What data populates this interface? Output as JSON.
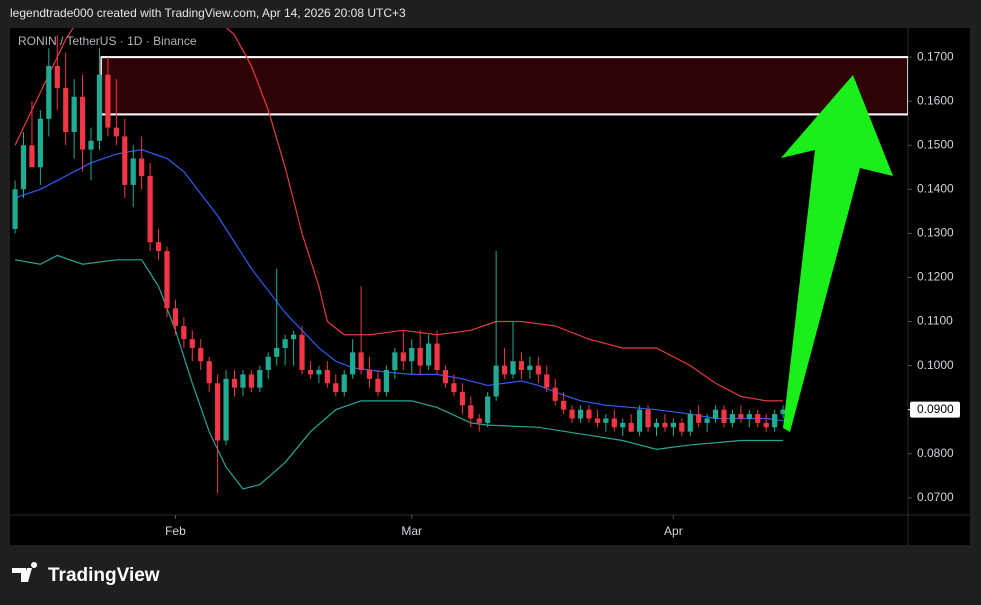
{
  "header": "legendtrade000 created with TradingView.com, Apr 14, 2026 20:08 UTC+3",
  "footer": "TradingView",
  "chart_data": {
    "type": "candlestick",
    "title": "RONIN / TetherUS · 1D · Binance",
    "up_color": "#22ab94",
    "down_color": "#f23645",
    "open": [
      0.131,
      0.14,
      0.15,
      0.145,
      0.156,
      0.168,
      0.163,
      0.153,
      0.161,
      0.149,
      0.151,
      0.166,
      0.154,
      0.152,
      0.141,
      0.147,
      0.143,
      0.128,
      0.126,
      0.113,
      0.109,
      0.106,
      0.104,
      0.101,
      0.096,
      0.083,
      0.097,
      0.095,
      0.098,
      0.095,
      0.099,
      0.102,
      0.104,
      0.106,
      0.107,
      0.099,
      0.098,
      0.099,
      0.096,
      0.094,
      0.098,
      0.103,
      0.099,
      0.097,
      0.094,
      0.099,
      0.103,
      0.101,
      0.104,
      0.1,
      0.105,
      0.099,
      0.096,
      0.094,
      0.091,
      0.088,
      0.087,
      0.093,
      0.1,
      0.098,
      0.101,
      0.099,
      0.1,
      0.098,
      0.095,
      0.092,
      0.09,
      0.088,
      0.09,
      0.088,
      0.087,
      0.088,
      0.086,
      0.087,
      0.085,
      0.09,
      0.086,
      0.087,
      0.086,
      0.087,
      0.085,
      0.089,
      0.087,
      0.088,
      0.09,
      0.087,
      0.089,
      0.088,
      0.089,
      0.087,
      0.086,
      0.089
    ],
    "high": [
      0.142,
      0.153,
      0.16,
      0.158,
      0.172,
      0.175,
      0.171,
      0.165,
      0.166,
      0.154,
      0.172,
      0.17,
      0.165,
      0.156,
      0.15,
      0.152,
      0.146,
      0.131,
      0.127,
      0.115,
      0.111,
      0.108,
      0.106,
      0.102,
      0.098,
      0.099,
      0.099,
      0.099,
      0.099,
      0.1,
      0.103,
      0.122,
      0.107,
      0.108,
      0.109,
      0.101,
      0.1,
      0.101,
      0.098,
      0.099,
      0.106,
      0.118,
      0.102,
      0.099,
      0.1,
      0.104,
      0.108,
      0.106,
      0.108,
      0.107,
      0.108,
      0.1,
      0.098,
      0.096,
      0.093,
      0.089,
      0.094,
      0.126,
      0.104,
      0.11,
      0.103,
      0.102,
      0.102,
      0.1,
      0.097,
      0.094,
      0.091,
      0.091,
      0.091,
      0.09,
      0.089,
      0.09,
      0.088,
      0.089,
      0.091,
      0.091,
      0.088,
      0.089,
      0.088,
      0.088,
      0.09,
      0.091,
      0.089,
      0.091,
      0.091,
      0.09,
      0.091,
      0.09,
      0.09,
      0.089,
      0.09,
      0.091
    ],
    "low": [
      0.13,
      0.138,
      0.146,
      0.141,
      0.152,
      0.158,
      0.15,
      0.147,
      0.144,
      0.142,
      0.149,
      0.152,
      0.15,
      0.138,
      0.136,
      0.14,
      0.126,
      0.124,
      0.111,
      0.107,
      0.104,
      0.101,
      0.099,
      0.094,
      0.071,
      0.082,
      0.093,
      0.093,
      0.094,
      0.094,
      0.097,
      0.1,
      0.1,
      0.1,
      0.098,
      0.097,
      0.096,
      0.095,
      0.093,
      0.093,
      0.097,
      0.098,
      0.095,
      0.093,
      0.093,
      0.097,
      0.099,
      0.098,
      0.098,
      0.099,
      0.098,
      0.095,
      0.093,
      0.089,
      0.086,
      0.085,
      0.086,
      0.092,
      0.097,
      0.097,
      0.097,
      0.097,
      0.096,
      0.094,
      0.091,
      0.089,
      0.087,
      0.087,
      0.087,
      0.086,
      0.085,
      0.085,
      0.084,
      0.085,
      0.084,
      0.085,
      0.084,
      0.085,
      0.084,
      0.084,
      0.084,
      0.086,
      0.085,
      0.087,
      0.086,
      0.086,
      0.087,
      0.086,
      0.086,
      0.085,
      0.085,
      0.088
    ],
    "close": [
      0.14,
      0.15,
      0.145,
      0.156,
      0.168,
      0.163,
      0.153,
      0.161,
      0.149,
      0.151,
      0.166,
      0.154,
      0.152,
      0.141,
      0.147,
      0.143,
      0.128,
      0.126,
      0.113,
      0.109,
      0.106,
      0.104,
      0.101,
      0.096,
      0.083,
      0.097,
      0.095,
      0.098,
      0.095,
      0.099,
      0.102,
      0.104,
      0.106,
      0.107,
      0.099,
      0.098,
      0.099,
      0.096,
      0.094,
      0.098,
      0.103,
      0.099,
      0.097,
      0.094,
      0.099,
      0.103,
      0.101,
      0.104,
      0.1,
      0.105,
      0.099,
      0.096,
      0.094,
      0.091,
      0.088,
      0.087,
      0.093,
      0.1,
      0.098,
      0.101,
      0.099,
      0.1,
      0.098,
      0.095,
      0.092,
      0.09,
      0.088,
      0.09,
      0.088,
      0.087,
      0.088,
      0.086,
      0.087,
      0.085,
      0.09,
      0.086,
      0.087,
      0.086,
      0.087,
      0.085,
      0.089,
      0.087,
      0.088,
      0.09,
      0.087,
      0.089,
      0.088,
      0.089,
      0.087,
      0.086,
      0.089,
      0.09
    ],
    "bands": [
      {
        "color": "#e5393f",
        "x": [
          0,
          2,
          4,
          6,
          8,
          10,
          14,
          18,
          22,
          26,
          28,
          30,
          32,
          34,
          36,
          37,
          39,
          42,
          46,
          50,
          54,
          57,
          60,
          64,
          68,
          72,
          76,
          80,
          83,
          86,
          89,
          91
        ],
        "values": [
          0.15,
          0.158,
          0.166,
          0.174,
          0.18,
          0.183,
          0.186,
          0.185,
          0.182,
          0.175,
          0.168,
          0.158,
          0.145,
          0.13,
          0.118,
          0.11,
          0.107,
          0.107,
          0.108,
          0.107,
          0.108,
          0.11,
          0.11,
          0.109,
          0.106,
          0.104,
          0.104,
          0.1,
          0.096,
          0.093,
          0.092,
          0.092
        ]
      },
      {
        "color": "#2f5cf0",
        "x": [
          0,
          3,
          6,
          9,
          12,
          15,
          18,
          20,
          22,
          24,
          26,
          28,
          30,
          32,
          34,
          36,
          38,
          40,
          42,
          44,
          47,
          50,
          53,
          56,
          58,
          60,
          62,
          64,
          67,
          70,
          73,
          76,
          80,
          83,
          86,
          89,
          91
        ],
        "values": [
          0.138,
          0.14,
          0.143,
          0.146,
          0.148,
          0.149,
          0.147,
          0.144,
          0.139,
          0.134,
          0.128,
          0.122,
          0.117,
          0.112,
          0.108,
          0.104,
          0.101,
          0.0995,
          0.099,
          0.0985,
          0.098,
          0.098,
          0.097,
          0.0955,
          0.096,
          0.0965,
          0.0955,
          0.094,
          0.092,
          0.091,
          0.0905,
          0.09,
          0.089,
          0.088,
          0.088,
          0.088,
          0.0875
        ]
      },
      {
        "color": "#26a69a",
        "x": [
          0,
          3,
          5,
          8,
          12,
          15,
          17,
          19,
          21,
          23,
          25,
          27,
          29,
          32,
          35,
          38,
          41,
          44,
          47,
          50,
          54,
          56,
          62,
          67,
          72,
          76,
          80,
          86,
          91
        ],
        "values": [
          0.124,
          0.123,
          0.125,
          0.123,
          0.124,
          0.124,
          0.118,
          0.108,
          0.096,
          0.085,
          0.077,
          0.072,
          0.073,
          0.078,
          0.085,
          0.09,
          0.092,
          0.092,
          0.092,
          0.0905,
          0.087,
          0.0865,
          0.086,
          0.0845,
          0.083,
          0.081,
          0.082,
          0.083,
          0.083
        ]
      }
    ],
    "zone": {
      "low": 0.157,
      "high": 0.17,
      "x_start": 10.2,
      "color": "#2e0306"
    },
    "last_price": {
      "value": 0.09,
      "label": "0.0900"
    },
    "xlim": [
      -0.6,
      105.8
    ],
    "xticks": [
      {
        "value": 19,
        "label": "Feb"
      },
      {
        "value": 47,
        "label": "Mar"
      },
      {
        "value": 78,
        "label": "Apr"
      }
    ],
    "ylim": [
      0.0661,
      0.1766
    ],
    "yticks": [
      {
        "value": 0.07,
        "label": "0.0700"
      },
      {
        "value": 0.08,
        "label": "0.0800"
      },
      {
        "value": 0.09,
        "label": "0.0900"
      },
      {
        "value": 0.1,
        "label": "0.1000"
      },
      {
        "value": 0.11,
        "label": "0.1100"
      },
      {
        "value": 0.12,
        "label": "0.1200"
      },
      {
        "value": 0.13,
        "label": "0.1300"
      },
      {
        "value": 0.14,
        "label": "0.1400"
      },
      {
        "value": 0.15,
        "label": "0.1500"
      },
      {
        "value": 0.16,
        "label": "0.1600"
      },
      {
        "value": 0.17,
        "label": "0.1700"
      }
    ]
  }
}
